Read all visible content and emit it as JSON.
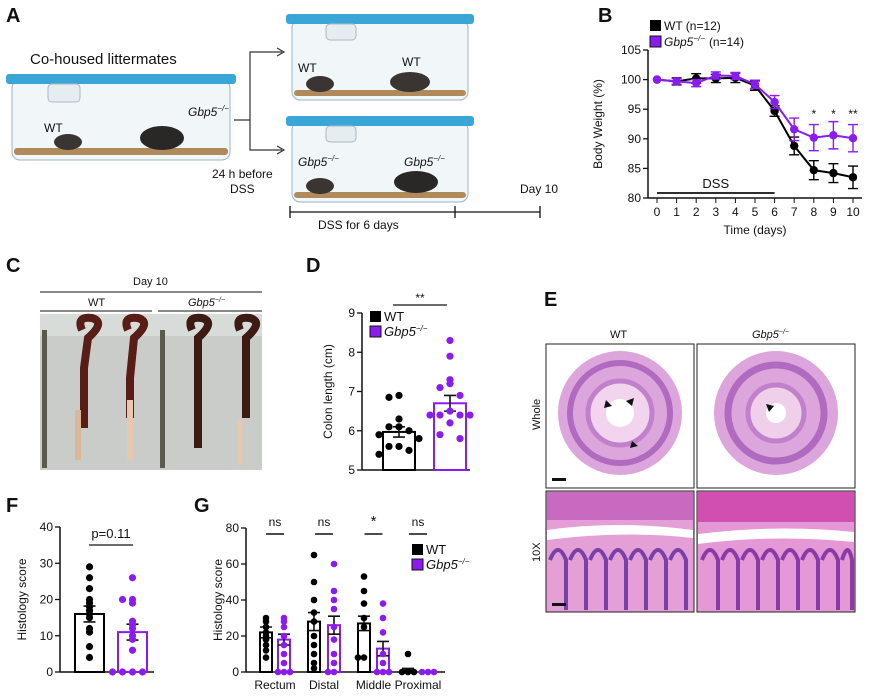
{
  "colors": {
    "wt": "#000000",
    "ko": "#8a1cf0",
    "bedding": "#b08a5a",
    "cage_lid": "#3aa6d8",
    "he_pink": "#d98ad0",
    "he_purple": "#7a3fa8"
  },
  "genotype": {
    "wt": "WT",
    "ko_gene": "Gbp5",
    "ko_sup": "−/−"
  },
  "panelA": {
    "label": "A",
    "cohoused": "Co-housed littermates",
    "before": "24 h before",
    "dss": "DSS",
    "dss_duration": "DSS for 6 days",
    "day10": "Day 10"
  },
  "panelC": {
    "label": "C",
    "day": "Day 10"
  },
  "panelE": {
    "label": "E",
    "row_whole": "Whole",
    "row_10x": "10X",
    "arrowhead_icon": "arrowhead"
  },
  "chart_data": [
    {
      "panel": "B",
      "type": "line",
      "xlabel": "Time (days)",
      "ylabel": "Body Weight (%)",
      "x": [
        0,
        1,
        2,
        3,
        4,
        5,
        6,
        7,
        8,
        9,
        10
      ],
      "xlim": [
        0,
        10
      ],
      "ylim": [
        80,
        105
      ],
      "yticks": [
        80,
        85,
        90,
        95,
        100,
        105
      ],
      "legend_position": "top-left",
      "annotation": "DSS",
      "annotation_range": [
        0,
        6
      ],
      "significance": [
        {
          "x": 8,
          "label": "*"
        },
        {
          "x": 9,
          "label": "*"
        },
        {
          "x": 10,
          "label": "**"
        }
      ],
      "series": [
        {
          "name": "WT (n=12)",
          "key": "wt",
          "values": [
            100,
            99.7,
            100.2,
            100.2,
            100.3,
            99.0,
            94.7,
            88.8,
            84.7,
            84.2,
            83.5
          ],
          "sem": [
            0,
            0.6,
            0.8,
            0.7,
            0.8,
            0.8,
            0.9,
            1.5,
            1.6,
            1.6,
            1.9
          ]
        },
        {
          "name": "(n=14)",
          "key": "ko",
          "values": [
            100,
            99.7,
            99.4,
            100.7,
            100.6,
            99.2,
            96.2,
            91.6,
            90.2,
            90.6,
            90.1
          ],
          "sem": [
            0,
            0.5,
            0.6,
            0.6,
            0.6,
            0.7,
            1.1,
            1.9,
            2.2,
            2.3,
            2.3
          ]
        }
      ]
    },
    {
      "panel": "D",
      "type": "bar",
      "ylabel": "Colon length (cm)",
      "ylim": [
        5,
        9
      ],
      "yticks": [
        5,
        6,
        7,
        8,
        9
      ],
      "legend_position": "top-left",
      "significance": "**",
      "series": [
        {
          "key": "wt",
          "mean": 5.97,
          "sem": 0.13,
          "points": [
            6.9,
            6.85,
            6.3,
            6.1,
            6.1,
            6.0,
            5.9,
            5.8,
            5.6,
            5.6,
            5.5,
            5.4
          ]
        },
        {
          "key": "ko",
          "mean": 6.7,
          "sem": 0.2,
          "points": [
            8.3,
            7.9,
            7.3,
            7.2,
            7.1,
            6.9,
            6.5,
            6.4,
            6.4,
            6.4,
            6.4,
            6.2,
            5.9,
            5.8
          ]
        }
      ]
    },
    {
      "panel": "F",
      "type": "bar",
      "ylabel": "Histology score",
      "ylim": [
        0,
        40
      ],
      "yticks": [
        0,
        10,
        20,
        30,
        40
      ],
      "significance": "p=0.11",
      "series": [
        {
          "key": "wt",
          "mean": 16,
          "sem": 2.2,
          "points": [
            29,
            26,
            23,
            20,
            19,
            18,
            17,
            16,
            15,
            12,
            11,
            7,
            4
          ]
        },
        {
          "key": "ko",
          "mean": 11,
          "sem": 2.2,
          "points": [
            26,
            20,
            20,
            19,
            14,
            13,
            12,
            10,
            9,
            6,
            0,
            0,
            0,
            0
          ]
        }
      ]
    },
    {
      "panel": "G",
      "type": "bar",
      "ylabel": "Histology score",
      "ylim": [
        0,
        80
      ],
      "yticks": [
        0,
        20,
        40,
        60,
        80
      ],
      "legend_position": "top-right",
      "categories": [
        "Rectum",
        "Distal",
        "Middle",
        "Proximal"
      ],
      "significance": [
        "ns",
        "ns",
        "*",
        "ns"
      ],
      "series": [
        {
          "key": "wt",
          "mean": [
            22,
            28,
            27,
            1
          ],
          "sem": [
            3,
            5,
            4,
            1
          ],
          "points": [
            [
              30,
              28,
              25,
              22,
              20,
              18,
              15,
              12,
              8
            ],
            [
              65,
              50,
              40,
              33,
              28,
              20,
              15,
              10,
              5,
              2
            ],
            [
              53,
              45,
              38,
              30,
              25,
              8,
              8
            ],
            [
              10,
              0,
              0,
              0
            ]
          ]
        },
        {
          "key": "ko",
          "mean": [
            18,
            26,
            13,
            0
          ],
          "sem": [
            3,
            5,
            4,
            0
          ],
          "points": [
            [
              30,
              28,
              25,
              20,
              15,
              10,
              5,
              0,
              0,
              0
            ],
            [
              60,
              45,
              40,
              35,
              25,
              18,
              10,
              5,
              0,
              0
            ],
            [
              38,
              30,
              22,
              10,
              5,
              0,
              0,
              0
            ],
            [
              0,
              0,
              0
            ]
          ]
        }
      ]
    }
  ]
}
